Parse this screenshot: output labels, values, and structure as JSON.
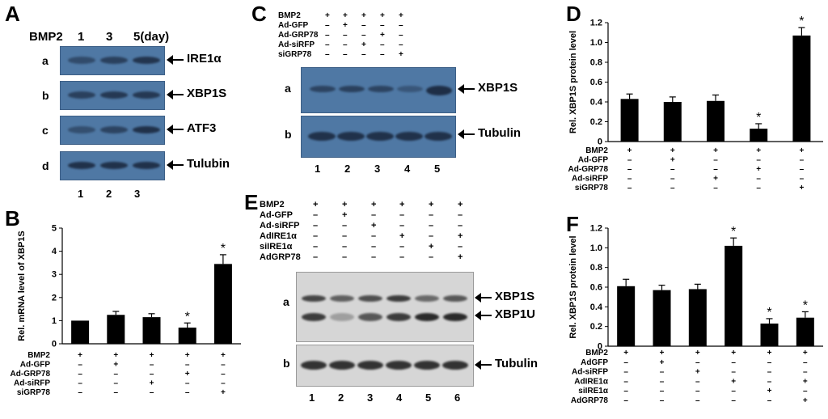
{
  "panels": {
    "A": {
      "letter": "A",
      "header_treatment": "BMP2",
      "header_times": [
        "1",
        "3",
        "5(day)"
      ],
      "rows": [
        {
          "row": "a",
          "label": "IRE1α"
        },
        {
          "row": "b",
          "label": "XBP1S"
        },
        {
          "row": "c",
          "label": "ATF3"
        },
        {
          "row": "d",
          "label": "Tulubin"
        }
      ],
      "lanes": [
        "1",
        "2",
        "3"
      ]
    },
    "C": {
      "letter": "C",
      "treatments": [
        "BMP2",
        "Ad-GFP",
        "Ad-GRP78",
        "Ad-siRFP",
        "siGRP78"
      ],
      "signs": [
        [
          "+",
          "+",
          "+",
          "+",
          "+"
        ],
        [
          "–",
          "+",
          "–",
          "–",
          "–"
        ],
        [
          "–",
          "–",
          "–",
          "+",
          "–"
        ],
        [
          "–",
          "–",
          "+",
          "–",
          "–"
        ],
        [
          "–",
          "–",
          "–",
          "–",
          "+"
        ]
      ],
      "rows": [
        {
          "row": "a",
          "label": "XBP1S"
        },
        {
          "row": "b",
          "label": "Tubulin"
        }
      ],
      "lanes": [
        "1",
        "2",
        "3",
        "4",
        "5"
      ]
    },
    "E": {
      "letter": "E",
      "treatments": [
        "BMP2",
        "Ad-GFP",
        "Ad-siRFP",
        "AdIRE1α",
        "siIRE1α",
        "AdGRP78"
      ],
      "signs": [
        [
          "+",
          "+",
          "+",
          "+",
          "+",
          "+"
        ],
        [
          "–",
          "+",
          "–",
          "–",
          "–",
          "–"
        ],
        [
          "–",
          "–",
          "+",
          "–",
          "–",
          "–"
        ],
        [
          "–",
          "–",
          "–",
          "+",
          "–",
          "+"
        ],
        [
          "–",
          "–",
          "–",
          "–",
          "+",
          "–"
        ],
        [
          "–",
          "–",
          "–",
          "–",
          "–",
          "+"
        ]
      ],
      "rows": [
        {
          "row": "a",
          "labels": [
            "XBP1S",
            "XBP1U"
          ]
        },
        {
          "row": "b",
          "label": "Tubulin"
        }
      ],
      "lanes": [
        "1",
        "2",
        "3",
        "4",
        "5",
        "6"
      ]
    }
  },
  "chart_data": [
    {
      "panel": "B",
      "type": "bar",
      "ylabel": "Rel. mRNA level of XBP1S",
      "ylim": [
        0,
        5
      ],
      "yticks": [
        "0",
        "1",
        "2",
        "3",
        "4",
        "5"
      ],
      "values": [
        1.0,
        1.25,
        1.15,
        0.7,
        3.45
      ],
      "errors": [
        0.0,
        0.15,
        0.15,
        0.2,
        0.4
      ],
      "significant": [
        false,
        false,
        false,
        true,
        true
      ],
      "treatments": [
        "BMP2",
        "Ad-GFP",
        "Ad-GRP78",
        "Ad-siRFP",
        "siGRP78"
      ],
      "signs": [
        [
          "+",
          "+",
          "+",
          "+",
          "+"
        ],
        [
          "–",
          "+",
          "–",
          "–",
          "–"
        ],
        [
          "–",
          "–",
          "–",
          "+",
          "–"
        ],
        [
          "–",
          "–",
          "+",
          "–",
          "–"
        ],
        [
          "–",
          "–",
          "–",
          "–",
          "+"
        ]
      ]
    },
    {
      "panel": "D",
      "type": "bar",
      "ylabel": "Rel. XBP1S protein level",
      "ylim": [
        0,
        1.2
      ],
      "yticks": [
        "0",
        "0.2",
        "0.4",
        "0.6",
        "0.8",
        "1.0",
        "1.2"
      ],
      "values": [
        0.43,
        0.4,
        0.41,
        0.13,
        1.07
      ],
      "errors": [
        0.05,
        0.05,
        0.06,
        0.05,
        0.08
      ],
      "significant": [
        false,
        false,
        false,
        true,
        true
      ],
      "treatments": [
        "BMP2",
        "Ad-GFP",
        "Ad-GRP78",
        "Ad-siRFP",
        "siGRP78"
      ],
      "signs": [
        [
          "+",
          "+",
          "+",
          "+",
          "+"
        ],
        [
          "–",
          "+",
          "–",
          "–",
          "–"
        ],
        [
          "–",
          "–",
          "–",
          "+",
          "–"
        ],
        [
          "–",
          "–",
          "+",
          "–",
          "–"
        ],
        [
          "–",
          "–",
          "–",
          "–",
          "+"
        ]
      ]
    },
    {
      "panel": "F",
      "type": "bar",
      "ylabel": "Rel. XBP1S protein level",
      "ylim": [
        0,
        1.2
      ],
      "yticks": [
        "0",
        "0.2",
        "0.4",
        "0.6",
        "0.8",
        "1.0",
        "1.2"
      ],
      "values": [
        0.61,
        0.57,
        0.58,
        1.02,
        0.23,
        0.29
      ],
      "errors": [
        0.07,
        0.05,
        0.05,
        0.08,
        0.05,
        0.06
      ],
      "significant": [
        false,
        false,
        false,
        true,
        true,
        true
      ],
      "treatments": [
        "BMP2",
        "AdGFP",
        "Ad-siRFP",
        "AdIRE1α",
        "siIRE1α",
        "AdGRP78"
      ],
      "signs": [
        [
          "+",
          "+",
          "+",
          "+",
          "+",
          "+"
        ],
        [
          "–",
          "+",
          "–",
          "–",
          "–",
          "–"
        ],
        [
          "–",
          "–",
          "+",
          "–",
          "–",
          "–"
        ],
        [
          "–",
          "–",
          "–",
          "+",
          "–",
          "+"
        ],
        [
          "–",
          "–",
          "–",
          "–",
          "+",
          "–"
        ],
        [
          "–",
          "–",
          "–",
          "–",
          "–",
          "+"
        ]
      ]
    }
  ],
  "significance_marker": "*",
  "colors": {
    "bar": "#000000",
    "blot": "#4f78a4",
    "band": "#1e2e46"
  }
}
